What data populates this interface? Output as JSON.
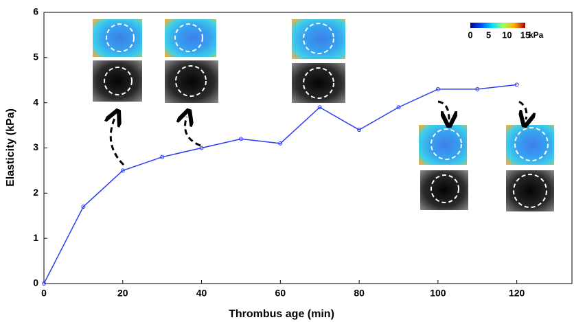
{
  "chart_data": {
    "type": "line",
    "xlabel": "Thrombus age (min)",
    "ylabel": "Elasticity  (kPa)",
    "x": [
      0,
      10,
      20,
      30,
      40,
      50,
      60,
      70,
      80,
      90,
      100,
      110,
      120
    ],
    "series": [
      {
        "color": "#2a3cf0",
        "values": [
          0,
          1.7,
          2.5,
          2.8,
          3.0,
          3.2,
          3.1,
          3.9,
          3.4,
          3.9,
          4.3,
          4.3,
          4.4
        ]
      }
    ],
    "xlim": [
      0,
      134
    ],
    "xticks": [
      0,
      20,
      40,
      60,
      80,
      100,
      120
    ],
    "ylim": [
      0,
      6
    ],
    "yticks": [
      0,
      1,
      2,
      3,
      4,
      5,
      6
    ],
    "colorbar": {
      "clim": [
        0,
        15
      ],
      "ticks": [
        0,
        5,
        10,
        15
      ],
      "label": "kPa"
    }
  }
}
